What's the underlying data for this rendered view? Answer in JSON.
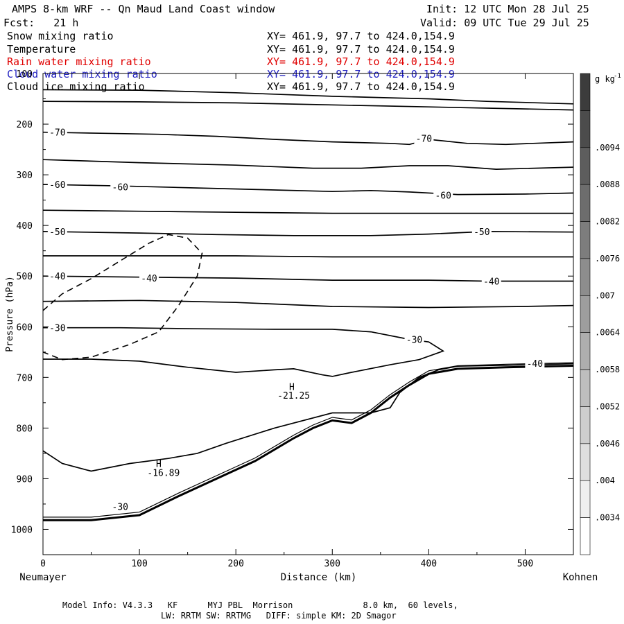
{
  "header": {
    "title": "AMPS 8-km WRF -- Qn Maud Land Coast window",
    "fcst": "Fcst:   21 h",
    "init": "Init: 12 UTC Mon 28 Jul 25",
    "valid": "Valid: 09 UTC Tue 29 Jul 25"
  },
  "fields": [
    {
      "name": "Snow mixing ratio",
      "xy": "XY= 461.9, 97.7 to 424.0,154.9",
      "color": "#000000"
    },
    {
      "name": "Temperature",
      "xy": "XY= 461.9, 97.7 to 424.0,154.9",
      "color": "#000000"
    },
    {
      "name": "Rain water mixing ratio",
      "xy": "XY= 461.9, 97.7 to 424.0,154.9",
      "color": "#e00000"
    },
    {
      "name": "Cloud water mixing ratio",
      "xy": "XY= 461.9, 97.7 to 424.0,154.9",
      "color": "#2020c0"
    },
    {
      "name": "Cloud ice mixing ratio",
      "xy": "XY= 461.9, 97.7 to 424.0,154.9",
      "color": "#000000"
    }
  ],
  "footer": {
    "line1": "Model Info: V4.3.3   KF      MYJ PBL  Morrison              8.0 km,  60 levels,",
    "line2": "LW: RRTM SW: RRTMG   DIFF: simple KM: 2D Smagor"
  },
  "chart_data": {
    "type": "line",
    "xlabel": "Distance (km)",
    "ylabel": "Pressure (hPa)",
    "x_left_label": "Neumayer",
    "x_right_label": "Kohnen",
    "xlim": [
      0,
      550
    ],
    "ylim": [
      1050,
      100
    ],
    "xticks": [
      0,
      100,
      200,
      300,
      400,
      500
    ],
    "yticks": [
      100,
      200,
      300,
      400,
      500,
      600,
      700,
      800,
      900,
      1000
    ],
    "colorbar": {
      "unit": "g kg",
      "unit_exp": "-1",
      "labels": [
        ".0094",
        ".0088",
        ".0082",
        ".0076",
        ".007",
        ".0064",
        ".0058",
        ".0052",
        ".0046",
        ".004",
        ".0034"
      ],
      "levels": 13
    },
    "isotherms": [
      {
        "label": "",
        "points": [
          [
            0,
            132
          ],
          [
            100,
            133
          ],
          [
            200,
            138
          ],
          [
            300,
            145
          ],
          [
            360,
            148
          ],
          [
            400,
            150
          ],
          [
            460,
            155
          ],
          [
            550,
            160
          ]
        ]
      },
      {
        "label": "",
        "points": [
          [
            0,
            155
          ],
          [
            100,
            156
          ],
          [
            200,
            158
          ],
          [
            300,
            162
          ],
          [
            400,
            166
          ],
          [
            500,
            170
          ],
          [
            550,
            172
          ]
        ]
      },
      {
        "label": "-70",
        "label_at": [
          15,
          216
        ],
        "points": [
          [
            0,
            216
          ],
          [
            60,
            218
          ],
          [
            120,
            220
          ],
          [
            180,
            224
          ],
          [
            240,
            230
          ],
          [
            300,
            235
          ],
          [
            360,
            238
          ],
          [
            380,
            240
          ],
          [
            400,
            230
          ],
          [
            440,
            238
          ],
          [
            480,
            240
          ],
          [
            550,
            235
          ]
        ]
      },
      {
        "label": "-70",
        "label_at": [
          395,
          228
        ],
        "points": []
      },
      {
        "label": "",
        "points": [
          [
            0,
            270
          ],
          [
            100,
            276
          ],
          [
            200,
            281
          ],
          [
            280,
            287
          ],
          [
            330,
            287
          ],
          [
            380,
            282
          ],
          [
            420,
            282
          ],
          [
            470,
            289
          ],
          [
            550,
            285
          ]
        ]
      },
      {
        "label": "-60",
        "label_at": [
          15,
          319
        ],
        "points": [
          [
            0,
            319
          ],
          [
            80,
            322
          ],
          [
            160,
            326
          ],
          [
            240,
            330
          ],
          [
            300,
            333
          ],
          [
            340,
            331
          ],
          [
            380,
            334
          ],
          [
            430,
            339
          ],
          [
            500,
            338
          ],
          [
            550,
            336
          ]
        ]
      },
      {
        "label": "-60",
        "label_at": [
          80,
          324
        ],
        "points": []
      },
      {
        "label": "-60",
        "label_at": [
          415,
          340
        ],
        "points": []
      },
      {
        "label": "",
        "points": [
          [
            0,
            370
          ],
          [
            100,
            372
          ],
          [
            200,
            374
          ],
          [
            300,
            376
          ],
          [
            400,
            376
          ],
          [
            500,
            376
          ],
          [
            550,
            376
          ]
        ]
      },
      {
        "label": "-50",
        "label_at": [
          15,
          412
        ],
        "points": [
          [
            0,
            412
          ],
          [
            100,
            415
          ],
          [
            180,
            418
          ],
          [
            260,
            420
          ],
          [
            340,
            420
          ],
          [
            400,
            417
          ],
          [
            460,
            412
          ],
          [
            550,
            413
          ]
        ]
      },
      {
        "label": "-50",
        "label_at": [
          455,
          412
        ],
        "points": []
      },
      {
        "label": "",
        "points": [
          [
            0,
            460
          ],
          [
            100,
            460
          ],
          [
            200,
            460
          ],
          [
            300,
            462
          ],
          [
            400,
            462
          ],
          [
            500,
            462
          ],
          [
            550,
            462
          ]
        ]
      },
      {
        "label": "-40",
        "label_at": [
          15,
          500
        ],
        "points": [
          [
            0,
            500
          ],
          [
            100,
            502
          ],
          [
            200,
            504
          ],
          [
            300,
            508
          ],
          [
            400,
            508
          ],
          [
            460,
            510
          ],
          [
            550,
            510
          ]
        ]
      },
      {
        "label": "-40",
        "label_at": [
          110,
          504
        ],
        "points": []
      },
      {
        "label": "-40",
        "label_at": [
          465,
          510
        ],
        "points": []
      },
      {
        "label": "",
        "points": [
          [
            0,
            550
          ],
          [
            100,
            548
          ],
          [
            200,
            552
          ],
          [
            300,
            560
          ],
          [
            400,
            562
          ],
          [
            500,
            560
          ],
          [
            550,
            558
          ]
        ]
      },
      {
        "label": "-30",
        "label_at": [
          15,
          602
        ],
        "points": [
          [
            0,
            602
          ],
          [
            80,
            602
          ],
          [
            160,
            604
          ],
          [
            240,
            605
          ],
          [
            300,
            605
          ],
          [
            340,
            610
          ],
          [
            380,
            625
          ],
          [
            400,
            630
          ],
          [
            415,
            648
          ],
          [
            390,
            665
          ],
          [
            360,
            675
          ],
          [
            320,
            690
          ],
          [
            300,
            698
          ],
          [
            290,
            695
          ],
          [
            260,
            683
          ],
          [
            240,
            685
          ],
          [
            200,
            690
          ],
          [
            150,
            680
          ],
          [
            100,
            668
          ],
          [
            50,
            664
          ],
          [
            0,
            664
          ]
        ]
      },
      {
        "label": "-30",
        "label_at": [
          385,
          625
        ],
        "points": []
      },
      {
        "label": "",
        "points": [
          [
            0,
            845
          ],
          [
            20,
            870
          ],
          [
            50,
            885
          ],
          [
            90,
            870
          ],
          [
            130,
            860
          ],
          [
            160,
            850
          ],
          [
            190,
            830
          ],
          [
            240,
            800
          ],
          [
            300,
            770
          ],
          [
            340,
            770
          ],
          [
            360,
            760
          ],
          [
            370,
            730
          ],
          [
            390,
            700
          ],
          [
            410,
            685
          ],
          [
            430,
            678
          ],
          [
            480,
            676
          ],
          [
            550,
            673
          ]
        ]
      },
      {
        "label": "-21.25",
        "label_at": [
          260,
          735
        ],
        "points": []
      },
      {
        "label": "-16.89",
        "label_at": [
          125,
          888
        ],
        "points": []
      },
      {
        "label": "-30",
        "label_at": [
          80,
          955
        ],
        "points": []
      },
      {
        "label": "-40",
        "label_at": [
          510,
          672
        ],
        "points": []
      }
    ],
    "h_markers": [
      {
        "label": "H",
        "at": [
          258,
          718
        ]
      },
      {
        "label": "H",
        "at": [
          120,
          870
        ]
      }
    ],
    "terrain": [
      [
        0,
        982
      ],
      [
        50,
        982
      ],
      [
        100,
        972
      ],
      [
        140,
        935
      ],
      [
        180,
        900
      ],
      [
        220,
        865
      ],
      [
        260,
        820
      ],
      [
        280,
        800
      ],
      [
        300,
        785
      ],
      [
        320,
        790
      ],
      [
        340,
        770
      ],
      [
        360,
        740
      ],
      [
        380,
        715
      ],
      [
        400,
        693
      ],
      [
        430,
        683
      ],
      [
        480,
        680
      ],
      [
        550,
        677
      ]
    ],
    "cloud_dashed": [
      [
        0,
        568
      ],
      [
        20,
        535
      ],
      [
        50,
        505
      ],
      [
        80,
        470
      ],
      [
        110,
        435
      ],
      [
        130,
        418
      ],
      [
        150,
        425
      ],
      [
        165,
        455
      ],
      [
        160,
        500
      ],
      [
        140,
        560
      ],
      [
        120,
        610
      ],
      [
        90,
        635
      ],
      [
        50,
        660
      ],
      [
        20,
        665
      ],
      [
        0,
        650
      ]
    ]
  }
}
